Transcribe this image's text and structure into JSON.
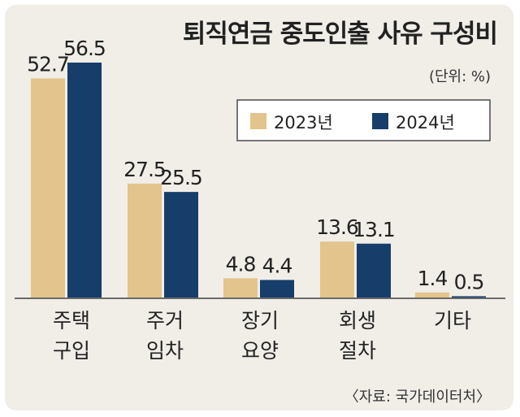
{
  "chart_data": {
    "type": "bar",
    "title": "퇴직연금 중도인출 사유 구성비",
    "unit": "(단위: %)",
    "categories": [
      [
        "주택",
        "구입"
      ],
      [
        "주거",
        "임차"
      ],
      [
        "장기",
        "요양"
      ],
      [
        "회생",
        "절차"
      ],
      [
        "기타"
      ]
    ],
    "series": [
      {
        "name": "2023년",
        "color": "#e2c48c",
        "values": [
          52.7,
          27.5,
          4.8,
          13.6,
          1.4
        ]
      },
      {
        "name": "2024년",
        "color": "#173d6b",
        "values": [
          56.5,
          25.5,
          4.4,
          13.1,
          0.5
        ]
      }
    ],
    "value_labels": [
      [
        "52.7",
        "27.5",
        "4.8",
        "13.6",
        "1.4"
      ],
      [
        "56.5",
        "25.5",
        "4.4",
        "13.1",
        "0.5"
      ]
    ],
    "source": "〈자료: 국가데이터처〉",
    "ylim": [
      0,
      56.5
    ],
    "grid": false,
    "legend_position": "top-right"
  }
}
